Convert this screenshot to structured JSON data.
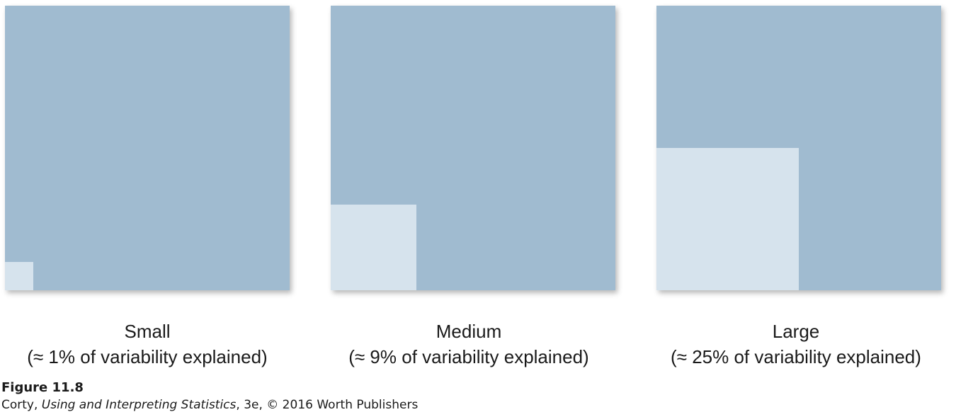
{
  "effects": [
    {
      "label": "Small",
      "description": "(≈ 1% of variability explained)",
      "percent_explained": 1
    },
    {
      "label": "Medium",
      "description": "(≈ 9% of variability explained)",
      "percent_explained": 9
    },
    {
      "label": "Large",
      "description": "(≈ 25% of variability explained)",
      "percent_explained": 25
    }
  ],
  "colors": {
    "total_variability": "#a0bbd0",
    "explained_variability": "#d6e3ed"
  },
  "caption": {
    "figure_number": "Figure 11.8",
    "author": "Corty, ",
    "book_title": "Using and Interpreting Statistics",
    "edition_copyright": ", 3e, © 2016 Worth Publishers"
  }
}
